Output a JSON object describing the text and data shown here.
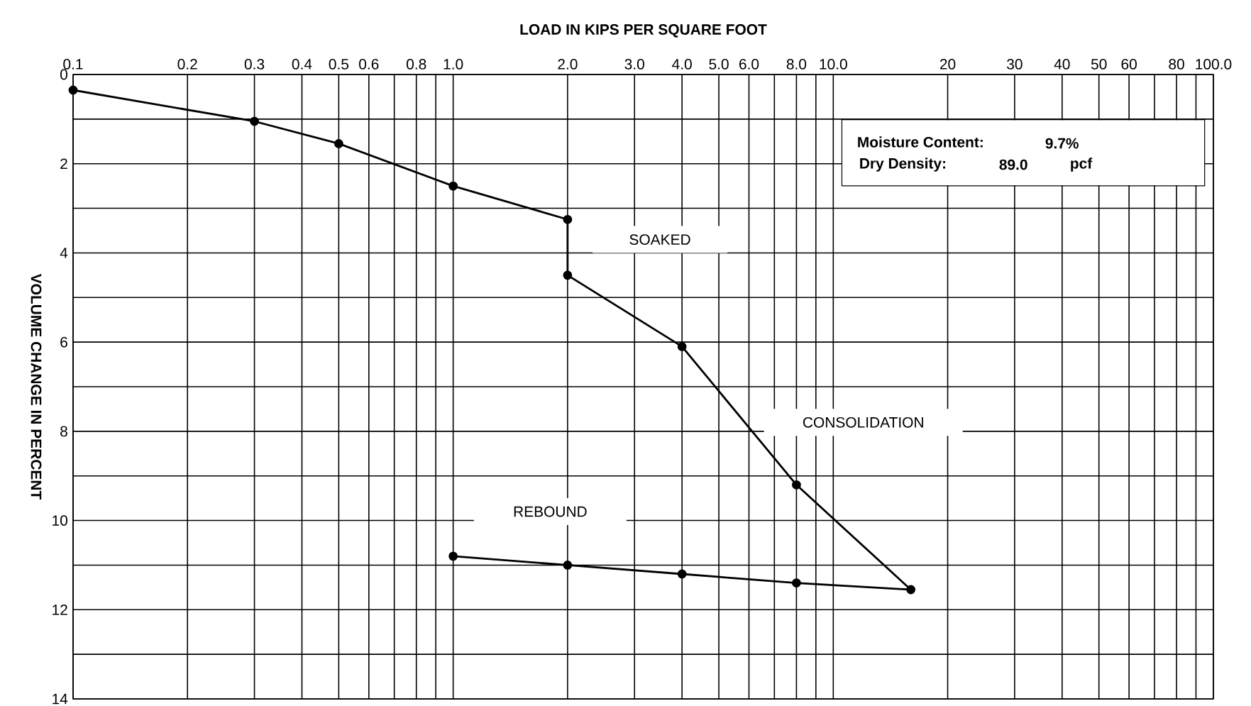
{
  "chart_data": {
    "type": "line",
    "xlabel": "LOAD IN KIPS PER SQUARE FOOT",
    "ylabel": "VOLUME CHANGE IN PERCENT",
    "x": [
      0.1,
      0.3,
      0.5,
      1.0,
      2.0,
      2.0,
      4.0,
      8.0,
      16.0,
      8.0,
      4.0,
      2.0,
      1.0
    ],
    "series": [
      {
        "color": "#000000",
        "values": [
          0.35,
          1.05,
          1.55,
          2.5,
          3.25,
          4.5,
          6.1,
          9.2,
          11.55,
          11.4,
          11.2,
          11.0,
          10.8
        ]
      }
    ],
    "xlim": [
      0.1,
      100
    ],
    "ylim": [
      14,
      0
    ],
    "log": "x",
    "xticks": [
      0.1,
      0.2,
      0.3,
      0.4,
      0.5,
      0.6,
      {
        "value": 0.7,
        "label": null
      },
      0.8,
      {
        "value": 0.9,
        "label": null
      },
      {
        "value": 1,
        "label": "1.0"
      },
      {
        "value": 2,
        "label": "2.0"
      },
      {
        "value": 3,
        "label": "3.0"
      },
      {
        "value": 4,
        "label": "4.0"
      },
      {
        "value": 5,
        "label": "5.0"
      },
      {
        "value": 6,
        "label": "6.0"
      },
      {
        "value": 7,
        "label": null
      },
      {
        "value": 8,
        "label": "8.0"
      },
      {
        "value": 9,
        "label": null
      },
      {
        "value": 10,
        "label": "10.0"
      },
      20,
      30,
      40,
      50,
      60,
      {
        "value": 70,
        "label": null
      },
      80,
      {
        "value": 90,
        "label": null
      },
      {
        "value": 100,
        "label": "100.0"
      }
    ],
    "yticks": [
      0,
      {
        "value": 1,
        "label": null
      },
      2,
      {
        "value": 3,
        "label": null
      },
      4,
      {
        "value": 5,
        "label": null
      },
      6,
      {
        "value": 7,
        "label": null
      },
      8,
      {
        "value": 9,
        "label": null
      },
      10,
      {
        "value": 11,
        "label": null
      },
      12,
      {
        "value": 13,
        "label": null
      },
      14
    ],
    "grid": true,
    "marker": "circle",
    "line_style": "solid",
    "annotations": [
      "SOAKED",
      "CONSOLIDATION",
      "REBOUND",
      "Moisture Content:",
      "9.7%",
      "Dry Density:",
      "89.0",
      "pcf"
    ]
  }
}
